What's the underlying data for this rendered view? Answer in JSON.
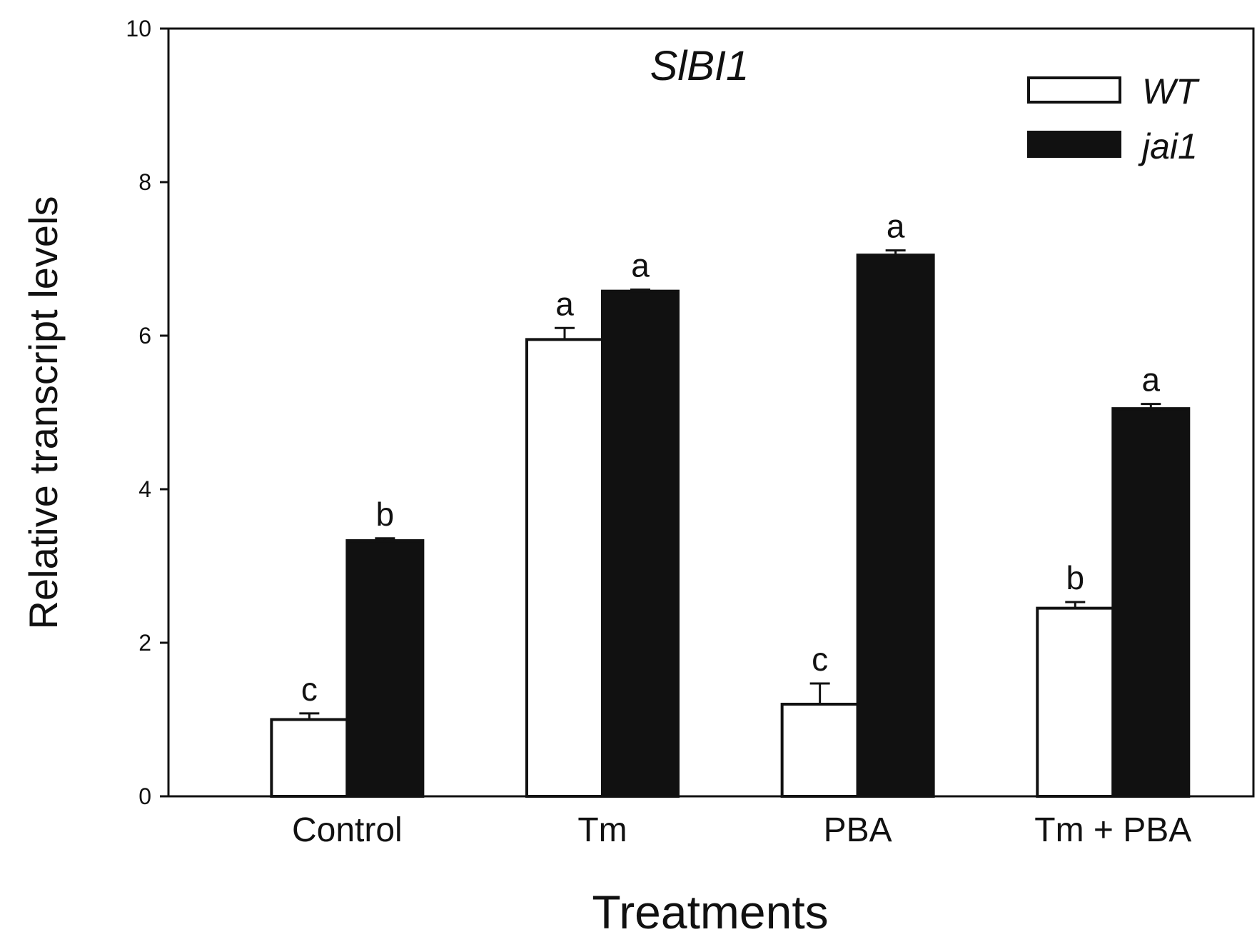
{
  "chart_data": {
    "type": "bar",
    "title": "SlBI1",
    "xlabel": "Treatments",
    "ylabel": "Relative transcript levels",
    "categories": [
      "Control",
      "Tm",
      "PBA",
      "Tm + PBA"
    ],
    "ylim": [
      0,
      10
    ],
    "yticks": [
      0,
      2,
      4,
      6,
      8,
      10
    ],
    "legend_position": "top-right",
    "series": [
      {
        "name": "WT",
        "color": "#ffffff",
        "values": [
          1.0,
          5.95,
          1.2,
          2.45
        ],
        "errors": [
          0.08,
          0.15,
          0.27,
          0.08
        ],
        "letters": [
          "c",
          "a",
          "c",
          "b"
        ]
      },
      {
        "name": "jai1",
        "color": "#111111",
        "values": [
          3.33,
          6.58,
          7.05,
          5.05
        ],
        "errors": [
          0.03,
          0.02,
          0.06,
          0.06
        ],
        "letters": [
          "b",
          "a",
          "a",
          "a"
        ]
      }
    ]
  }
}
